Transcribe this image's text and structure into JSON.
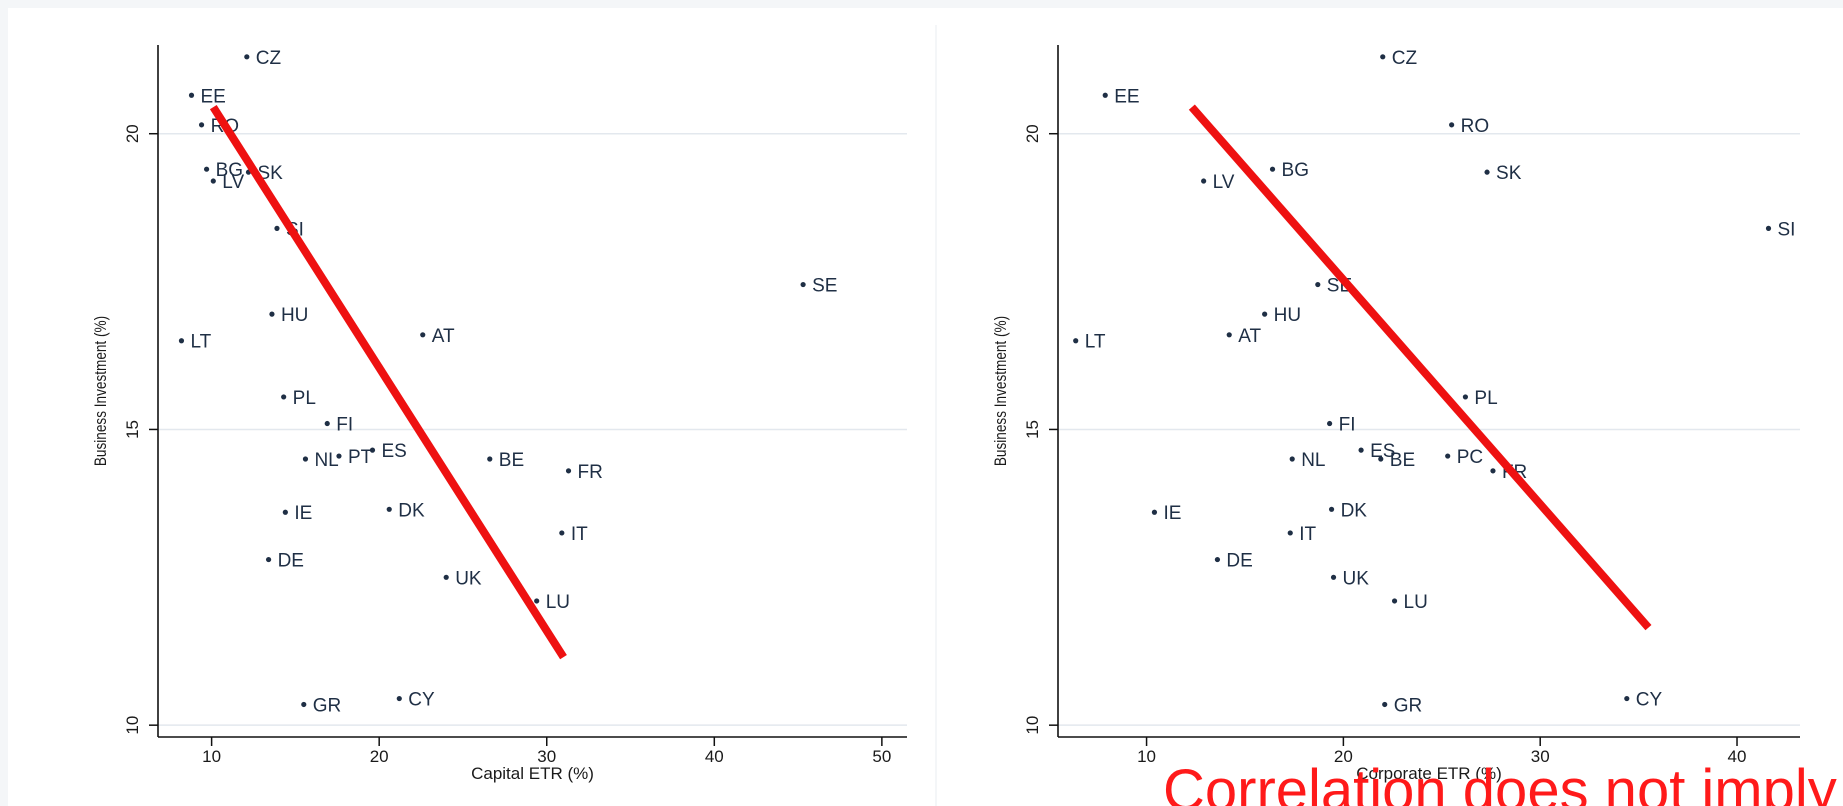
{
  "caption": "Correlation does not imply",
  "style": {
    "panel_bg": "#ffffff",
    "outer_bg": "#f4f6f8",
    "grid_color": "#e3e8ee",
    "point_color": "#1f2f45",
    "trend_color": "#ee1111",
    "caption_color": "#ff1a1a"
  },
  "chart_data": [
    {
      "type": "scatter",
      "xlabel": "Capital ETR (%)",
      "ylabel": "Business Investment (%)",
      "xlim": [
        6.8,
        51.5
      ],
      "ylim": [
        9.8,
        21.5
      ],
      "xticks": [
        10,
        20,
        30,
        40,
        50
      ],
      "yticks": [
        10,
        15,
        20
      ],
      "grid": true,
      "points": [
        {
          "label": "CZ",
          "x": 12.1,
          "y": 21.3
        },
        {
          "label": "EE",
          "x": 8.8,
          "y": 20.65
        },
        {
          "label": "RO",
          "x": 9.4,
          "y": 20.15
        },
        {
          "label": "BG",
          "x": 9.7,
          "y": 19.4
        },
        {
          "label": "SK",
          "x": 12.2,
          "y": 19.35
        },
        {
          "label": "LV",
          "x": 10.1,
          "y": 19.2
        },
        {
          "label": "SI",
          "x": 13.9,
          "y": 18.4
        },
        {
          "label": "SE",
          "x": 45.3,
          "y": 17.45
        },
        {
          "label": "HU",
          "x": 13.6,
          "y": 16.95
        },
        {
          "label": "AT",
          "x": 22.6,
          "y": 16.6
        },
        {
          "label": "LT",
          "x": 8.2,
          "y": 16.5
        },
        {
          "label": "PL",
          "x": 14.3,
          "y": 15.55
        },
        {
          "label": "FI",
          "x": 16.9,
          "y": 15.1
        },
        {
          "label": "ES",
          "x": 19.6,
          "y": 14.65
        },
        {
          "label": "PT",
          "x": 17.6,
          "y": 14.55
        },
        {
          "label": "NL",
          "x": 15.6,
          "y": 14.5
        },
        {
          "label": "BE",
          "x": 26.6,
          "y": 14.5
        },
        {
          "label": "FR",
          "x": 31.3,
          "y": 14.3
        },
        {
          "label": "IE",
          "x": 14.4,
          "y": 13.6
        },
        {
          "label": "DK",
          "x": 20.6,
          "y": 13.65
        },
        {
          "label": "IT",
          "x": 30.9,
          "y": 13.25
        },
        {
          "label": "DE",
          "x": 13.4,
          "y": 12.8
        },
        {
          "label": "UK",
          "x": 24.0,
          "y": 12.5
        },
        {
          "label": "LU",
          "x": 29.4,
          "y": 12.1
        },
        {
          "label": "GR",
          "x": 15.5,
          "y": 10.35
        },
        {
          "label": "CY",
          "x": 21.2,
          "y": 10.45
        }
      ],
      "trend_line": {
        "x": [
          10.1,
          31.0
        ],
        "y": [
          20.45,
          11.15
        ]
      }
    },
    {
      "type": "scatter",
      "xlabel": "Corporate ETR (%)",
      "ylabel": "Business Investment (%)",
      "xlim": [
        5.5,
        43.2
      ],
      "ylim": [
        9.8,
        21.5
      ],
      "xticks": [
        10,
        20,
        30,
        40
      ],
      "yticks": [
        10,
        15,
        20
      ],
      "grid": true,
      "points": [
        {
          "label": "CZ",
          "x": 22.0,
          "y": 21.3
        },
        {
          "label": "EE",
          "x": 7.9,
          "y": 20.65
        },
        {
          "label": "RO",
          "x": 25.5,
          "y": 20.15
        },
        {
          "label": "BG",
          "x": 16.4,
          "y": 19.4
        },
        {
          "label": "SK",
          "x": 27.3,
          "y": 19.35
        },
        {
          "label": "LV",
          "x": 12.9,
          "y": 19.2
        },
        {
          "label": "SI",
          "x": 41.6,
          "y": 18.4
        },
        {
          "label": "SE",
          "x": 18.7,
          "y": 17.45
        },
        {
          "label": "HU",
          "x": 16.0,
          "y": 16.95
        },
        {
          "label": "AT",
          "x": 14.2,
          "y": 16.6
        },
        {
          "label": "LT",
          "x": 6.4,
          "y": 16.5
        },
        {
          "label": "PL",
          "x": 26.2,
          "y": 15.55
        },
        {
          "label": "FI",
          "x": 19.3,
          "y": 15.1
        },
        {
          "label": "ES",
          "x": 20.9,
          "y": 14.65
        },
        {
          "label": "PC",
          "x": 25.3,
          "y": 14.55
        },
        {
          "label": "NL",
          "x": 17.4,
          "y": 14.5
        },
        {
          "label": "BE",
          "x": 21.9,
          "y": 14.5
        },
        {
          "label": "FR",
          "x": 27.6,
          "y": 14.3
        },
        {
          "label": "IE",
          "x": 10.4,
          "y": 13.6
        },
        {
          "label": "DK",
          "x": 19.4,
          "y": 13.65
        },
        {
          "label": "IT",
          "x": 17.3,
          "y": 13.25
        },
        {
          "label": "DE",
          "x": 13.6,
          "y": 12.8
        },
        {
          "label": "UK",
          "x": 19.5,
          "y": 12.5
        },
        {
          "label": "LU",
          "x": 22.6,
          "y": 12.1
        },
        {
          "label": "GR",
          "x": 22.1,
          "y": 10.35
        },
        {
          "label": "CY",
          "x": 34.4,
          "y": 10.45
        }
      ],
      "trend_line": {
        "x": [
          12.3,
          35.5
        ],
        "y": [
          20.45,
          11.65
        ]
      }
    }
  ]
}
